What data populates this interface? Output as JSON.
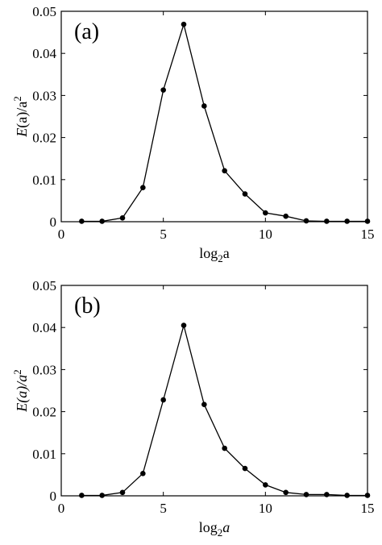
{
  "chart_data": [
    {
      "type": "line",
      "panel_label": "(a)",
      "xlabel": {
        "base": "log",
        "sub": "2",
        "var": "a",
        "italic_var": false
      },
      "ylabel": {
        "prefix": "E",
        "arg": "(a)/a",
        "sup": "2",
        "italic_arg": false
      },
      "xlim": [
        0,
        15
      ],
      "ylim": [
        0,
        0.05
      ],
      "xticks": [
        "0",
        "5",
        "10",
        "15"
      ],
      "yticks": [
        "0",
        "0.01",
        "0.02",
        "0.03",
        "0.04",
        "0.05"
      ],
      "grid": false,
      "legend": "none",
      "x": [
        1,
        2,
        3,
        4,
        5,
        6,
        7,
        8,
        9,
        10,
        11,
        12,
        13,
        14,
        15
      ],
      "series": [
        {
          "values": [
            0.0001,
            0.0001,
            0.0009,
            0.0081,
            0.0313,
            0.0469,
            0.0275,
            0.0121,
            0.0066,
            0.0021,
            0.0013,
            0.0002,
            0.0001,
            0.0001,
            0.0001
          ]
        }
      ]
    },
    {
      "type": "line",
      "panel_label": "(b)",
      "xlabel": {
        "base": "log",
        "sub": "2",
        "var": "a",
        "italic_var": true
      },
      "ylabel": {
        "prefix": "E",
        "arg": "(a)/a",
        "sup": "2",
        "italic_arg": true
      },
      "xlim": [
        0,
        15
      ],
      "ylim": [
        0,
        0.05
      ],
      "xticks": [
        "0",
        "5",
        "10",
        "15"
      ],
      "yticks": [
        "0",
        "0.01",
        "0.02",
        "0.03",
        "0.04",
        "0.05"
      ],
      "grid": false,
      "legend": "none",
      "x": [
        1,
        2,
        3,
        4,
        5,
        6,
        7,
        8,
        9,
        10,
        11,
        12,
        13,
        14,
        15
      ],
      "series": [
        {
          "values": [
            0.0001,
            0.0001,
            0.0008,
            0.0053,
            0.0228,
            0.0405,
            0.0217,
            0.0113,
            0.0065,
            0.0026,
            0.0008,
            0.0003,
            0.0003,
            0.0001,
            0.0001
          ]
        }
      ]
    }
  ]
}
